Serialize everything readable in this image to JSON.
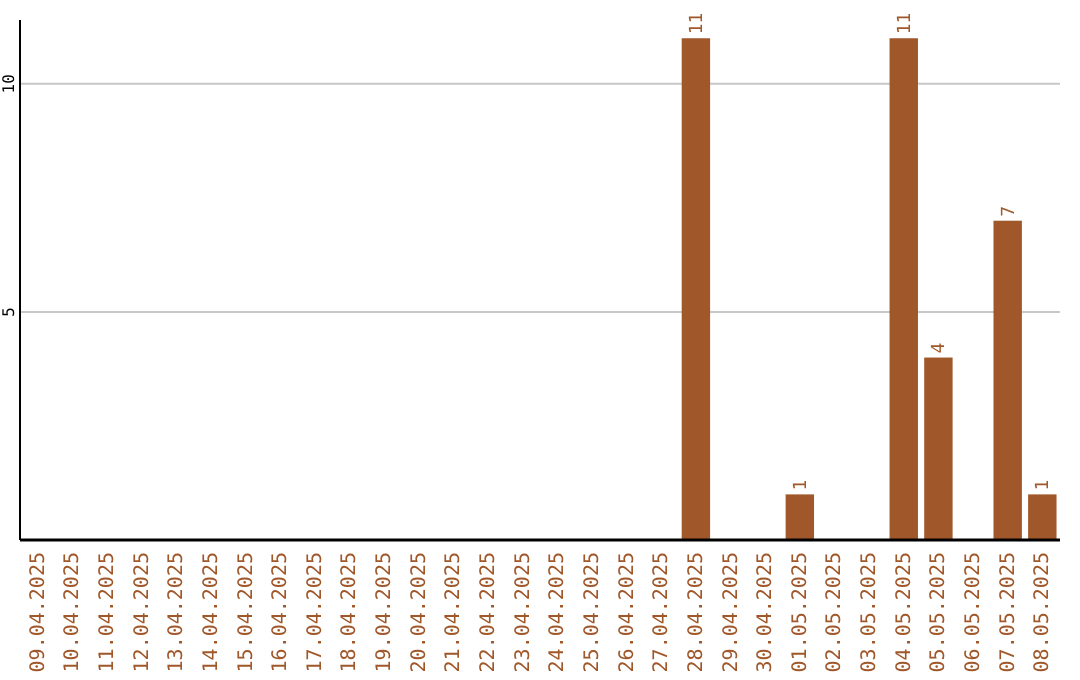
{
  "chart_data": {
    "type": "bar",
    "categories": [
      "09.04.2025",
      "10.04.2025",
      "11.04.2025",
      "12.04.2025",
      "13.04.2025",
      "14.04.2025",
      "15.04.2025",
      "16.04.2025",
      "17.04.2025",
      "18.04.2025",
      "19.04.2025",
      "20.04.2025",
      "21.04.2025",
      "22.04.2025",
      "23.04.2025",
      "24.04.2025",
      "25.04.2025",
      "26.04.2025",
      "27.04.2025",
      "28.04.2025",
      "29.04.2025",
      "30.04.2025",
      "01.05.2025",
      "02.05.2025",
      "03.05.2025",
      "04.05.2025",
      "05.05.2025",
      "06.05.2025",
      "07.05.2025",
      "08.05.2025"
    ],
    "values": [
      0,
      0,
      0,
      0,
      0,
      0,
      0,
      0,
      0,
      0,
      0,
      0,
      0,
      0,
      0,
      0,
      0,
      0,
      0,
      11,
      0,
      0,
      1,
      0,
      0,
      11,
      4,
      0,
      7,
      1
    ],
    "value_labels": [
      null,
      null,
      null,
      null,
      null,
      null,
      null,
      null,
      null,
      null,
      null,
      null,
      null,
      null,
      null,
      null,
      null,
      null,
      null,
      "11",
      null,
      null,
      "1",
      null,
      null,
      "11",
      "4",
      null,
      "7",
      "1"
    ],
    "color": "#a0582a",
    "ylim": [
      0,
      11.4
    ],
    "yticks": [
      5,
      10
    ],
    "grid": "y"
  }
}
